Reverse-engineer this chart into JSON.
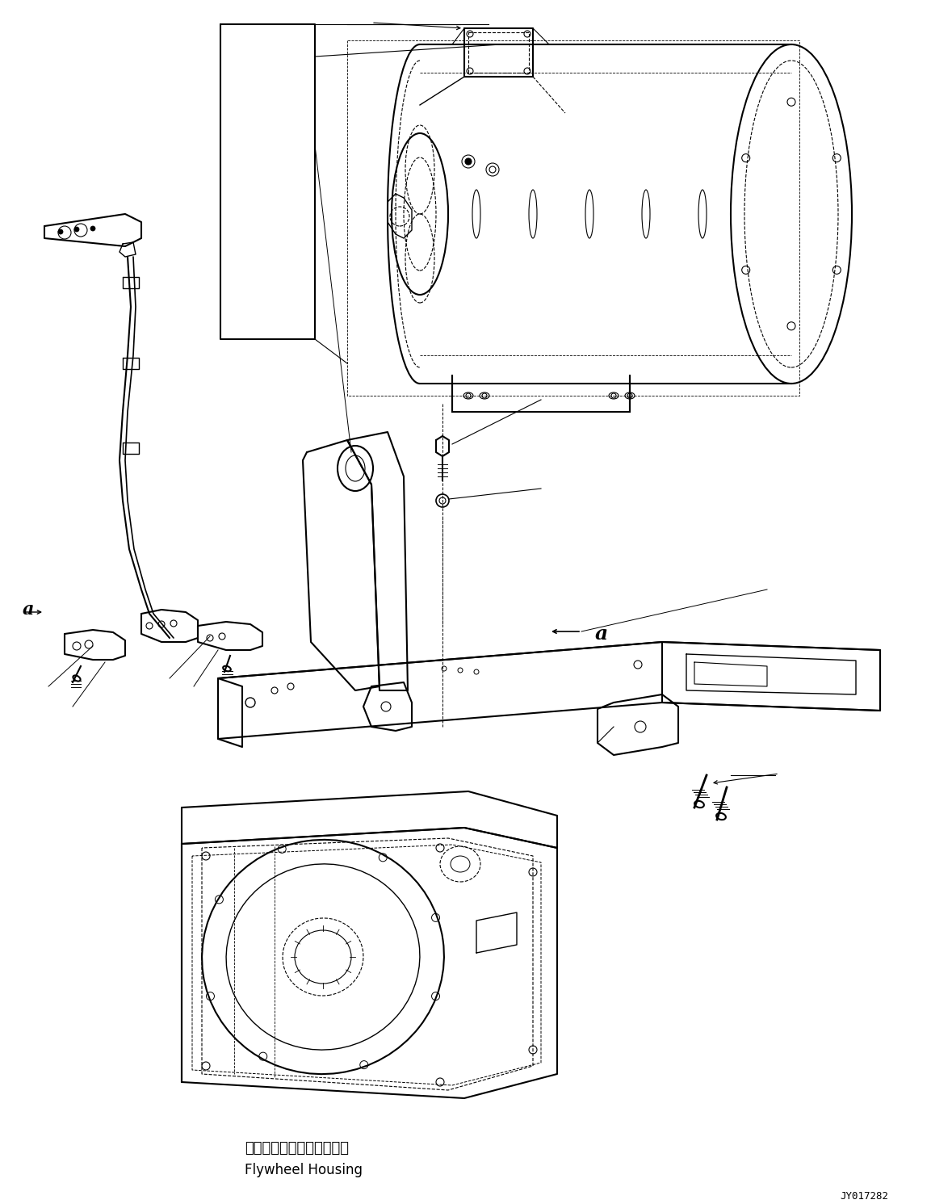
{
  "background_color": "#ffffff",
  "line_color": "#000000",
  "flywheel_label_jp": "フライホイールハウジング",
  "flywheel_label_en": "Flywheel Housing",
  "part_number": "JY017282",
  "fig_width": 11.53,
  "fig_height": 14.91,
  "dpi": 100
}
